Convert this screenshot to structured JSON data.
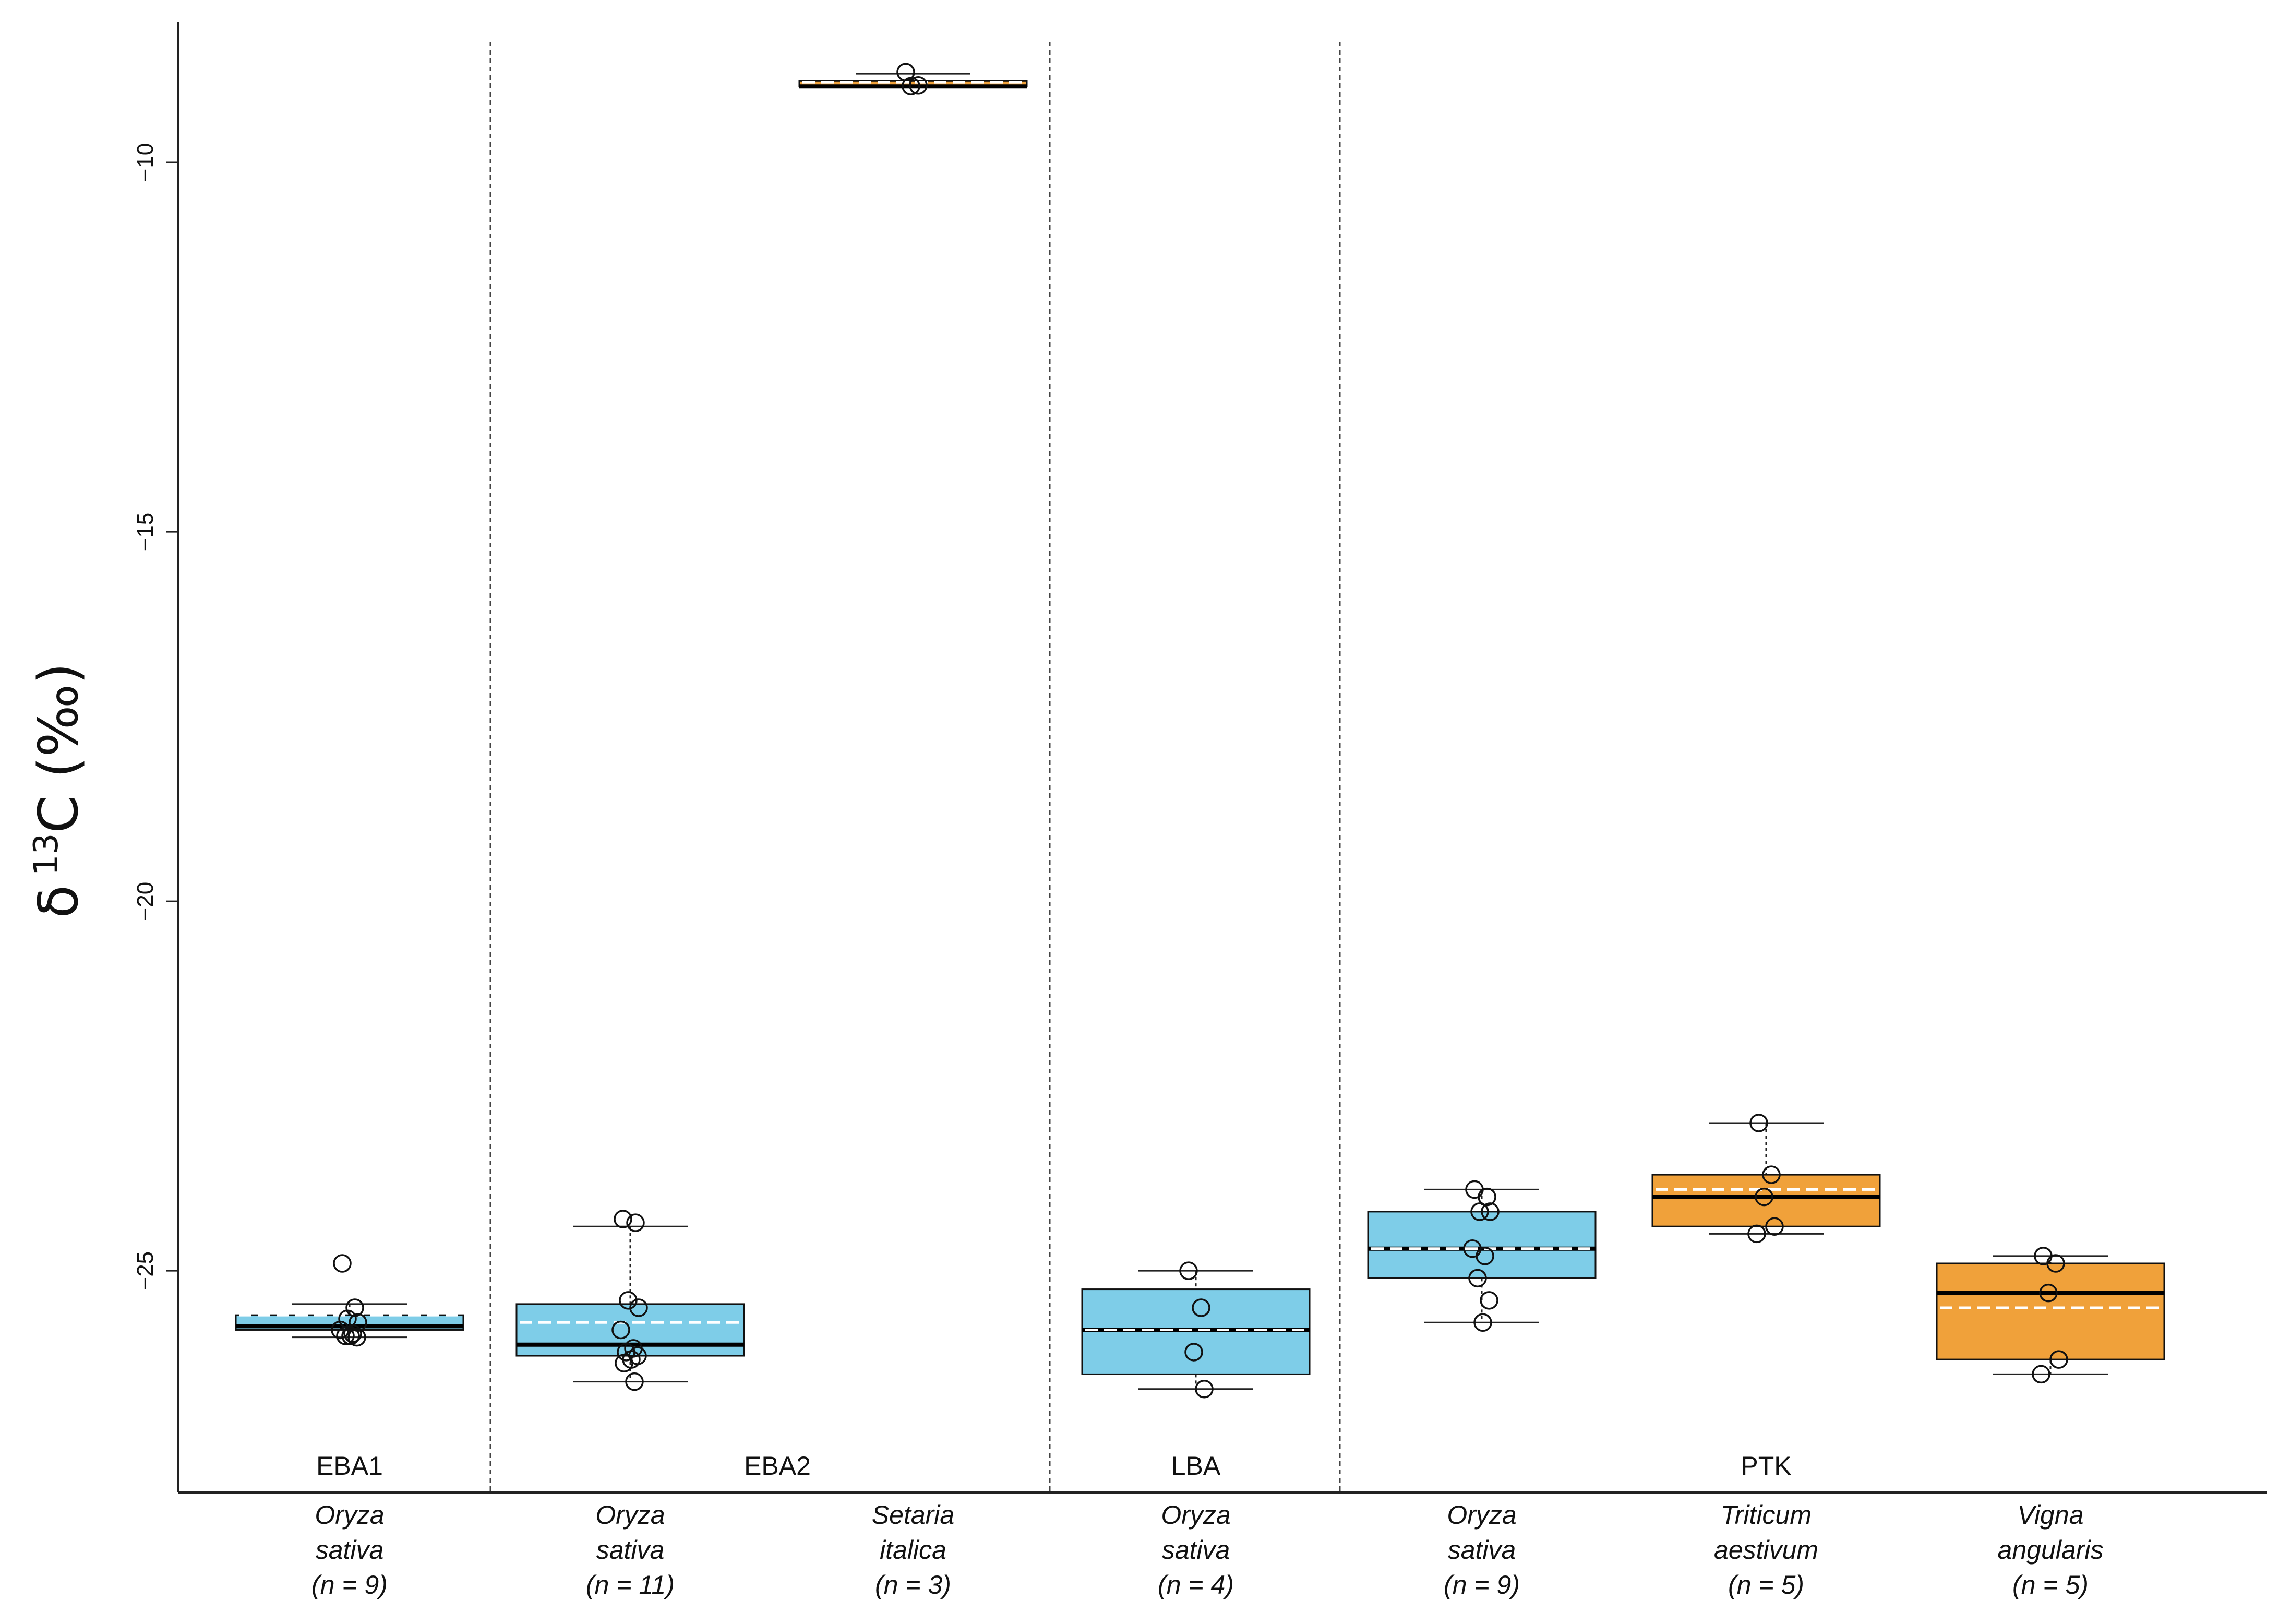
{
  "chart_data": {
    "type": "box",
    "ylabel": {
      "prefix": "δ",
      "superscript": "13",
      "main": "C (‰)"
    },
    "ylim": [
      -28,
      -8.1
    ],
    "yticks": [
      -10,
      -15,
      -20,
      -25
    ],
    "ytick_labels": [
      "−10",
      "−15",
      "−20",
      "−25"
    ],
    "grid": false,
    "colors": {
      "C3": "#7ecde8",
      "C4": "#f0a13a",
      "outline": "#111111"
    },
    "periods": [
      {
        "label": "EBA1",
        "groups": [
          0
        ]
      },
      {
        "label": "EBA2",
        "groups": [
          1,
          2
        ]
      },
      {
        "label": "LBA",
        "groups": [
          3
        ]
      },
      {
        "label": "PTK",
        "groups": [
          4,
          5,
          6
        ]
      }
    ],
    "groups": [
      {
        "genus": "Oryza",
        "species": "sativa",
        "n_label": "(n = 9)",
        "pathway": "C3",
        "q1": -25.8,
        "median": -25.75,
        "q3": -25.6,
        "mean": -25.6,
        "whisker_low": -25.9,
        "whisker_high": -25.45,
        "points": [
          -24.9,
          -25.5,
          -25.65,
          -25.7,
          -25.8,
          -25.85,
          -25.88,
          -25.9,
          -25.88
        ]
      },
      {
        "genus": "Oryza",
        "species": "sativa",
        "n_label": "(n = 11)",
        "pathway": "C3",
        "q1": -26.15,
        "median": -26.0,
        "q3": -25.45,
        "mean": -25.7,
        "whisker_low": -26.5,
        "whisker_high": -24.4,
        "points": [
          -24.3,
          -24.35,
          -25.4,
          -25.5,
          -25.8,
          -26.05,
          -26.1,
          -26.15,
          -26.2,
          -26.25,
          -26.5
        ]
      },
      {
        "genus": "Setaria",
        "species": "italica",
        "n_label": "(n = 3)",
        "pathway": "C4",
        "q1": -8.97,
        "median": -8.97,
        "q3": -8.9,
        "mean": -8.92,
        "whisker_low": -8.97,
        "whisker_high": -8.8,
        "points": [
          -8.78,
          -8.96,
          -8.97
        ]
      },
      {
        "genus": "Oryza",
        "species": "sativa",
        "n_label": "(n = 4)",
        "pathway": "C3",
        "q1": -26.4,
        "median": -25.8,
        "q3": -25.25,
        "mean": -25.8,
        "whisker_low": -26.6,
        "whisker_high": -25.0,
        "points": [
          -25.0,
          -25.5,
          -26.1,
          -26.6
        ]
      },
      {
        "genus": "Oryza",
        "species": "sativa",
        "n_label": "(n = 9)",
        "pathway": "C3",
        "q1": -25.1,
        "median": -24.7,
        "q3": -24.2,
        "mean": -24.7,
        "whisker_low": -25.7,
        "whisker_high": -23.9,
        "points": [
          -23.9,
          -24.0,
          -24.2,
          -24.2,
          -24.7,
          -24.8,
          -25.1,
          -25.4,
          -25.7
        ]
      },
      {
        "genus": "Triticum",
        "species": "aestivum",
        "n_label": "(n = 5)",
        "pathway": "C4",
        "q1": -24.4,
        "median": -24.0,
        "q3": -23.7,
        "mean": -23.9,
        "whisker_low": -24.5,
        "whisker_high": -23.0,
        "points": [
          -23.0,
          -23.7,
          -24.0,
          -24.4,
          -24.5
        ]
      },
      {
        "genus": "Vigna",
        "species": "angularis",
        "n_label": "(n = 5)",
        "pathway": "C4",
        "q1": -26.2,
        "median": -25.3,
        "q3": -24.9,
        "mean": -25.5,
        "whisker_low": -26.4,
        "whisker_high": -24.8,
        "points": [
          -24.8,
          -24.9,
          -25.3,
          -26.2,
          -26.4
        ]
      }
    ]
  }
}
